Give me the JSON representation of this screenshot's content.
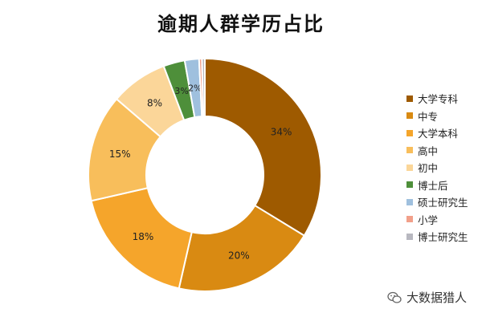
{
  "chart_data": {
    "type": "donut",
    "title": "逾期人群学历占比",
    "categories": [
      "大学专科",
      "中专",
      "大学本科",
      "高中",
      "初中",
      "博士后",
      "硕士研究生",
      "小学",
      "博士研究生"
    ],
    "values": [
      34,
      20,
      18,
      15,
      8,
      3,
      2,
      0.4,
      0.4
    ],
    "labels": [
      "34%",
      "20%",
      "18%",
      "15%",
      "8%",
      "3%",
      "2%",
      "",
      ""
    ],
    "colors": [
      "#9E5A00",
      "#D98A12",
      "#F5A52B",
      "#F8BE5B",
      "#FBD699",
      "#4E8F3A",
      "#9FC0DE",
      "#F2A08A",
      "#B8B8C0"
    ],
    "legend_position": "right"
  },
  "watermark": {
    "text": "大数据猎人",
    "icon": "wechat-icon"
  }
}
